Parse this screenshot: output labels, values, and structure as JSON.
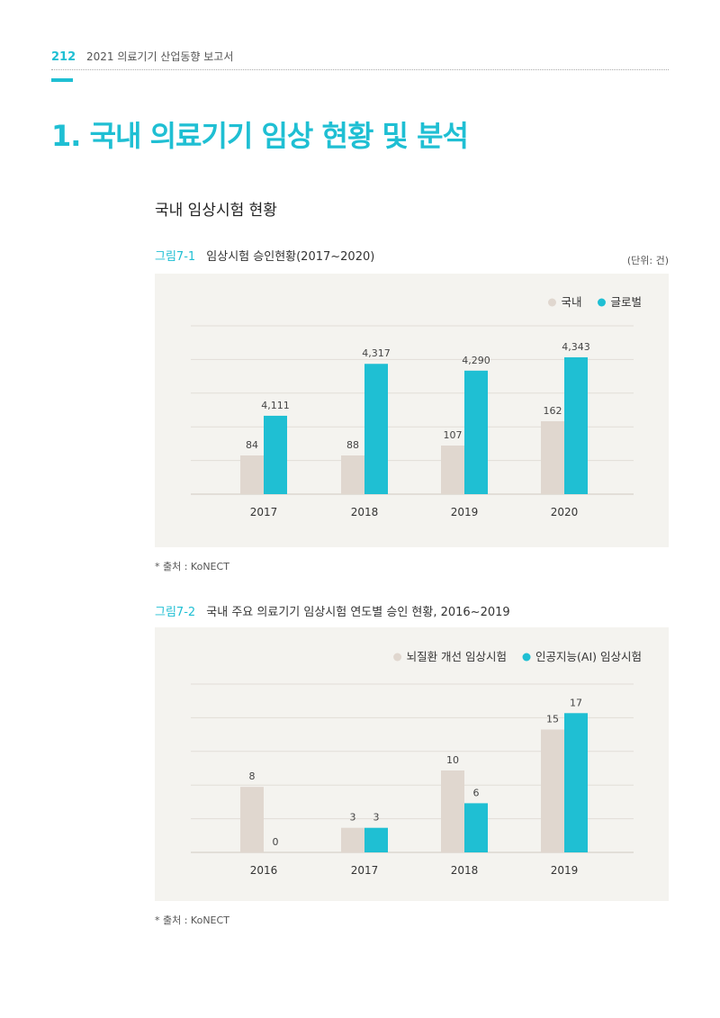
{
  "header": {
    "page_number": "212",
    "report_title": "2021 의료기기 산업동향 보고서"
  },
  "section_title": "1. 국내 의료기기 임상 현황 및 분석",
  "subsection_title": "국내 임상시험 현황",
  "figure1": {
    "number": "그림7-1",
    "caption": "임상시험 승인현황(2017~2020)",
    "unit": "(단위: 건)",
    "source": "* 출처 : KoNECT"
  },
  "figure2": {
    "number": "그림7-2",
    "caption": "국내 주요 의료기기 임상시험 연도별 승인 현황, 2016~2019",
    "source": "* 출처 : KoNECT"
  },
  "colors": {
    "accent": "#1fbfd3",
    "beige": "#e0d7cf",
    "chart_bg": "#f4f3ef"
  },
  "chart_data": [
    {
      "type": "bar",
      "categories": [
        "2017",
        "2018",
        "2019",
        "2020"
      ],
      "series": [
        {
          "name": "국내",
          "values": [
            84,
            88,
            107,
            162
          ],
          "labels": [
            "84",
            "88",
            "107",
            "162"
          ],
          "color": "#e0d7cf"
        },
        {
          "name": "글로벌",
          "values": [
            4111,
            4317,
            4290,
            4343
          ],
          "labels": [
            "4,111",
            "4,317",
            "4,290",
            "4,343"
          ],
          "color": "#1fbfd3"
        }
      ],
      "legend": "top-right",
      "grid": true
    },
    {
      "type": "bar",
      "categories": [
        "2016",
        "2017",
        "2018",
        "2019"
      ],
      "series": [
        {
          "name": "뇌질환 개선 임상시험",
          "values": [
            8,
            3,
            10,
            15
          ],
          "labels": [
            "8",
            "3",
            "10",
            "15"
          ],
          "color": "#e0d7cf"
        },
        {
          "name": "인공지능(AI) 임상시험",
          "values": [
            0,
            3,
            6,
            17
          ],
          "labels": [
            "0",
            "3",
            "6",
            "17"
          ],
          "color": "#1fbfd3"
        }
      ],
      "ylim": [
        0,
        20
      ],
      "legend": "top-right",
      "grid": true
    }
  ]
}
